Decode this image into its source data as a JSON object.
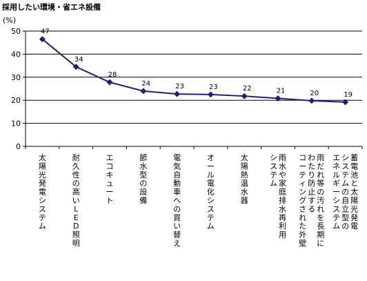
{
  "chart_data": {
    "type": "line",
    "title": "採用したい環境・省エネ設備",
    "ylabel": "(%)",
    "ylim": [
      0,
      50
    ],
    "yticks": [
      0,
      10,
      20,
      30,
      40,
      50
    ],
    "grid": true,
    "categories": [
      "太陽光発電システム",
      "耐久性の高いLED照明",
      "エコキュート",
      "節水型の設備",
      "電気自動車への買い替え",
      "オール電化システム",
      "太陽熱温水器",
      "雨水や家庭排水再利用システム",
      "雨だれ等の汚れを長期にわたり防止するコーティングされた外壁",
      "蓄電池と太陽光発電システムの自立型のエネルギーシステム"
    ],
    "category_lines": [
      [
        "太陽光発電システム"
      ],
      [
        "耐久性の高いLED照明"
      ],
      [
        "エコキュート"
      ],
      [
        "節水型の設備"
      ],
      [
        "電気自動車への買い替え"
      ],
      [
        "オール電化システム"
      ],
      [
        "太陽熱温水器"
      ],
      [
        "雨水や家庭排水再利用",
        "システム"
      ],
      [
        "雨だれ等の汚れを長期に",
        "わたり防止する",
        "コーティングされた外壁"
      ],
      [
        "蓄電池と太陽光発電",
        "システムの自立型の",
        "エネルギーシステム"
      ]
    ],
    "series": [
      {
        "values": [
          46.5,
          34.5,
          27.8,
          24.0,
          22.7,
          22.5,
          21.8,
          20.8,
          19.8,
          19.2
        ],
        "labels": [
          "47",
          "34",
          "28",
          "24",
          "23",
          "23",
          "22",
          "21",
          "20",
          "19"
        ]
      }
    ],
    "colors": {
      "line": "#1f1f7a",
      "marker": "#1f1f7a"
    }
  }
}
